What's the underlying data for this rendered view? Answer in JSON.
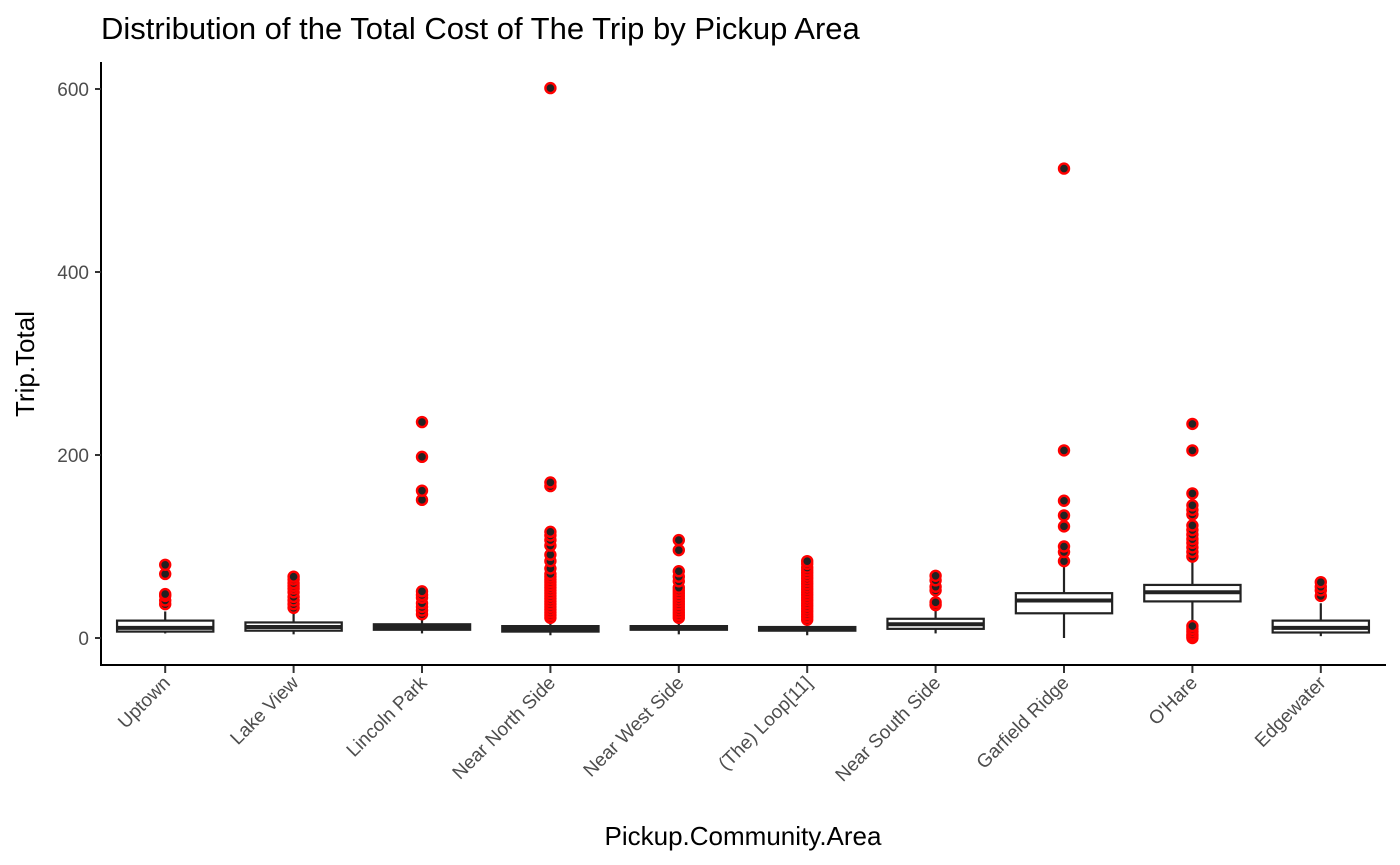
{
  "chart_data": {
    "type": "boxplot",
    "title": "Distribution of the Total Cost of The Trip by Pickup Area",
    "xlabel": "Pickup.Community.Area",
    "ylabel": "Trip.Total",
    "ylim": [
      -30,
      630
    ],
    "yticks": [
      0,
      200,
      400,
      600
    ],
    "grid": false,
    "legend": "none",
    "colors": {
      "box_fill": "#ffffff",
      "box_line": "#222222",
      "outlier_fill": "#222222",
      "outlier_outline": "#ff0000",
      "tick_text": "#4d4d4d"
    },
    "categories": [
      "Uptown",
      "Lake View",
      "Lincoln Park",
      "Near North Side",
      "Near West Side",
      "(The)  Loop[11]",
      "Near South Side",
      "Garfield Ridge",
      "O'Hare",
      "Edgewater"
    ],
    "boxes": [
      {
        "category": "Uptown",
        "min": 5,
        "q1": 7,
        "median": 11,
        "q3": 19,
        "max": 29,
        "outliers": [
          37,
          41,
          46,
          48,
          70,
          80
        ]
      },
      {
        "category": "Lake View",
        "min": 4,
        "q1": 8,
        "median": 12,
        "q3": 17,
        "max": 28,
        "outliers": [
          33,
          37,
          41,
          45,
          50,
          54,
          57,
          60,
          64,
          67
        ]
      },
      {
        "category": "Lincoln Park",
        "min": 5,
        "q1": 9,
        "median": 12,
        "q3": 15,
        "max": 22,
        "outliers": [
          26,
          30,
          34,
          38,
          44,
          47,
          51,
          151,
          161,
          198,
          236
        ]
      },
      {
        "category": "Near North Side",
        "min": 3,
        "q1": 7,
        "median": 10,
        "q3": 13,
        "max": 19,
        "outliers": [
          22,
          25,
          28,
          31,
          34,
          37,
          40,
          43,
          46,
          49,
          52,
          55,
          58,
          61,
          64,
          67,
          70,
          76,
          84,
          91,
          101,
          107,
          112,
          116,
          166,
          170,
          601
        ]
      },
      {
        "category": "Near West Side",
        "min": 4,
        "q1": 9,
        "median": 11,
        "q3": 13,
        "max": 18,
        "outliers": [
          22,
          25,
          28,
          31,
          34,
          37,
          40,
          43,
          46,
          49,
          52,
          55,
          62,
          67,
          73,
          96,
          107
        ]
      },
      {
        "category": "(The)  Loop[11]",
        "min": 3,
        "q1": 8,
        "median": 10,
        "q3": 12,
        "max": 17,
        "outliers": [
          20,
          23,
          26,
          29,
          32,
          35,
          38,
          41,
          44,
          47,
          50,
          53,
          56,
          59,
          62,
          65,
          68,
          71,
          74,
          77,
          81,
          84
        ]
      },
      {
        "category": "Near South Side",
        "min": 5,
        "q1": 10,
        "median": 15,
        "q3": 21,
        "max": 30,
        "outliers": [
          36,
          39,
          52,
          56,
          63,
          68
        ]
      },
      {
        "category": "Garfield Ridge",
        "min": 0,
        "q1": 27,
        "median": 41,
        "q3": 49,
        "max": 79,
        "outliers": [
          84,
          94,
          100,
          122,
          134,
          150,
          205,
          513
        ]
      },
      {
        "category": "O'Hare",
        "min": 15,
        "q1": 40,
        "median": 50,
        "q3": 58,
        "max": 84,
        "outliers": [
          0,
          2,
          4,
          7,
          10,
          13,
          89,
          94,
          99,
          104,
          108,
          113,
          118,
          123,
          135,
          140,
          145,
          158,
          205,
          234
        ]
      },
      {
        "category": "Edgewater",
        "min": 2,
        "q1": 6,
        "median": 11,
        "q3": 19,
        "max": 38,
        "outliers": [
          46,
          52,
          56,
          61
        ]
      }
    ]
  }
}
